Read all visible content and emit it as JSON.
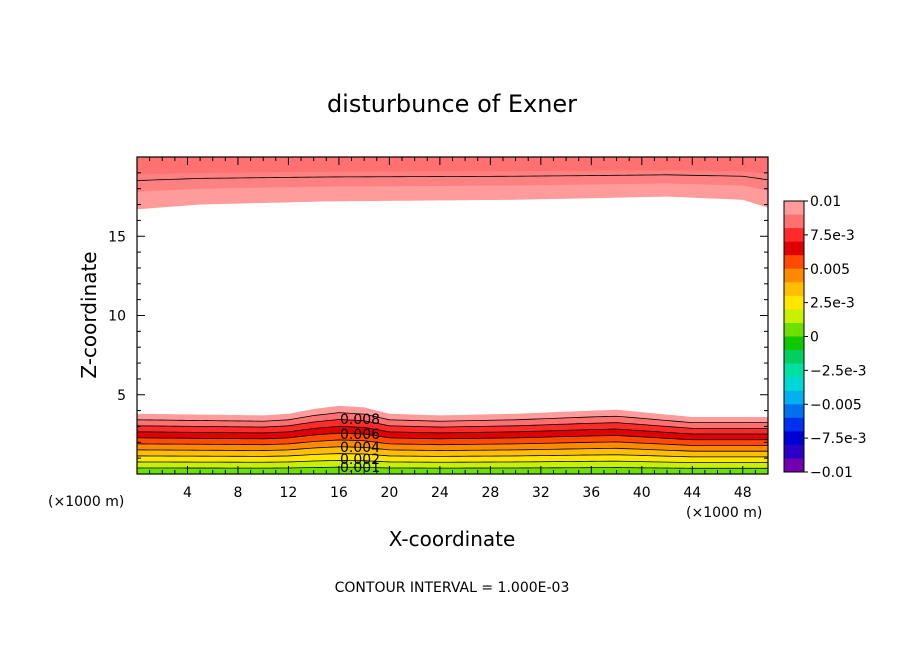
{
  "chart_data": {
    "type": "heatmap",
    "title": "disturbunce of Exner",
    "xlabel": "X-coordinate",
    "ylabel": "Z-coordinate",
    "x_unit": "(×1000 m)",
    "z_unit": "(×1000 m)",
    "xlim": [
      0,
      50
    ],
    "zlim": [
      0,
      20
    ],
    "x_ticks": [
      "4",
      "8",
      "12",
      "16",
      "20",
      "24",
      "28",
      "32",
      "36",
      "40",
      "44",
      "48"
    ],
    "z_ticks": [
      "5",
      "10",
      "15"
    ],
    "footer": "CONTOUR INTERVAL = 1.000E-03",
    "contour_labels": [
      "0.008",
      "0.006",
      "0.004",
      "0.002",
      "0.001"
    ],
    "colorbar": {
      "tick_labels": [
        "0.01",
        "7.5e-3",
        "0.005",
        "2.5e-3",
        "0",
        "−2.5e-3",
        "−0.005",
        "−7.5e-3",
        "−0.01"
      ],
      "levels_top_to_bottom": [
        0.01,
        0.009,
        0.008,
        0.007,
        0.006,
        0.005,
        0.004,
        0.003,
        0.002,
        0.001,
        0,
        -0.001,
        -0.002,
        -0.003,
        -0.004,
        -0.005,
        -0.006,
        -0.007,
        -0.008,
        -0.009
      ],
      "colors_top_to_bottom": [
        "#ff9b9b",
        "#ff7070",
        "#ff2a2a",
        "#e00000",
        "#ff4a00",
        "#ff8a00",
        "#ffbf00",
        "#ffe600",
        "#c8f000",
        "#6ee000",
        "#10c800",
        "#00d060",
        "#00e0a0",
        "#00d8d8",
        "#00b0f0",
        "#0070f0",
        "#0030f0",
        "#0000d0",
        "#2a00c8",
        "#7000b0"
      ]
    },
    "bottom_bands": {
      "upper_edge_km": [
        [
          0,
          3.8
        ],
        [
          10,
          3.7
        ],
        [
          12,
          3.8
        ],
        [
          14,
          4.1
        ],
        [
          16,
          4.3
        ],
        [
          18,
          4.2
        ],
        [
          20,
          3.8
        ],
        [
          24,
          3.7
        ],
        [
          30,
          3.8
        ],
        [
          36,
          4.0
        ],
        [
          38,
          4.05
        ],
        [
          40,
          3.9
        ],
        [
          44,
          3.6
        ],
        [
          50,
          3.6
        ]
      ],
      "colors_top_to_bottom": [
        "#ff9b9b",
        "#ff7070",
        "#ff2a2a",
        "#e00000",
        "#ff4a00",
        "#ff8a00",
        "#ffbf00",
        "#ffe600",
        "#c8f000",
        "#6ee000"
      ]
    },
    "top_bands": {
      "lower_edge_km": [
        [
          0,
          16.7
        ],
        [
          5,
          17.0
        ],
        [
          15,
          17.2
        ],
        [
          30,
          17.3
        ],
        [
          42,
          17.5
        ],
        [
          48,
          17.3
        ],
        [
          50,
          16.8
        ]
      ],
      "colors_top_to_bottom": [
        "#ff7070",
        "#ff8080",
        "#ff9b9b"
      ]
    }
  }
}
